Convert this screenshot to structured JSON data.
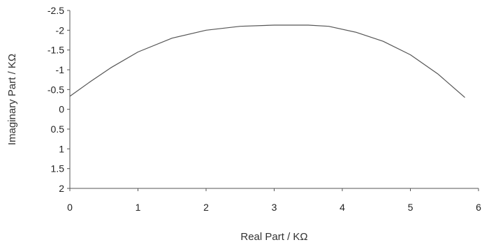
{
  "chart_data": {
    "type": "line",
    "title": "",
    "xlabel": "Real Part / KΩ",
    "ylabel": "Imaginary Part / KΩ",
    "xlim": [
      0,
      6
    ],
    "ylim": [
      -2.5,
      2
    ],
    "y_inverted": true,
    "x_ticks": [
      "0",
      "1",
      "2",
      "3",
      "4",
      "5",
      "6"
    ],
    "y_ticks": [
      "-2.5",
      "-2",
      "-1.5",
      "-1",
      "-0.5",
      "0",
      "0.5",
      "1",
      "1.5",
      "2"
    ],
    "grid": false,
    "legend": "none",
    "series": [
      {
        "x": [
          0.0,
          0.3,
          0.6,
          1.0,
          1.5,
          2.0,
          2.5,
          3.0,
          3.5,
          3.8,
          4.2,
          4.6,
          5.0,
          5.4,
          5.8
        ],
        "y": [
          -0.33,
          -0.7,
          -1.05,
          -1.45,
          -1.8,
          -2.0,
          -2.1,
          -2.13,
          -2.13,
          -2.1,
          -1.95,
          -1.72,
          -1.38,
          -0.9,
          -0.3
        ]
      }
    ]
  }
}
